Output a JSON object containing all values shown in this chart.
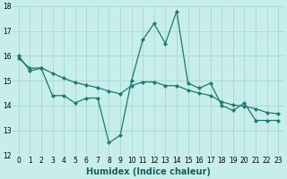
{
  "xlabel": "Humidex (Indice chaleur)",
  "bg_color": "#c8eeec",
  "grid_color": "#a0d8d6",
  "line_color": "#1a7a6e",
  "x_vals": [
    0,
    1,
    2,
    3,
    4,
    5,
    6,
    7,
    8,
    9,
    10,
    11,
    12,
    13,
    14,
    15,
    16,
    17,
    18,
    19,
    20,
    21,
    22,
    23
  ],
  "line1_y": [
    16.0,
    15.4,
    15.5,
    14.4,
    14.4,
    14.1,
    14.3,
    14.3,
    12.5,
    12.8,
    15.0,
    16.65,
    17.3,
    16.5,
    17.8,
    14.9,
    14.7,
    14.9,
    14.0,
    13.8,
    14.1,
    13.4,
    13.4,
    13.4
  ],
  "line2_y": [
    15.9,
    15.5,
    15.52,
    15.3,
    15.1,
    14.93,
    14.82,
    14.72,
    14.58,
    14.47,
    14.8,
    14.95,
    14.95,
    14.8,
    14.8,
    14.62,
    14.5,
    14.4,
    14.15,
    14.02,
    13.97,
    13.87,
    13.72,
    13.67
  ],
  "ylim": [
    12,
    18
  ],
  "xlim": [
    -0.5,
    23.5
  ],
  "yticks": [
    12,
    13,
    14,
    15,
    16,
    17,
    18
  ],
  "xticks": [
    0,
    1,
    2,
    3,
    4,
    5,
    6,
    7,
    8,
    9,
    10,
    11,
    12,
    13,
    14,
    15,
    16,
    17,
    18,
    19,
    20,
    21,
    22,
    23
  ],
  "marker": "D",
  "marker_size": 2.2,
  "line_width": 0.9,
  "xlabel_fontsize": 7,
  "tick_fontsize": 5.5
}
